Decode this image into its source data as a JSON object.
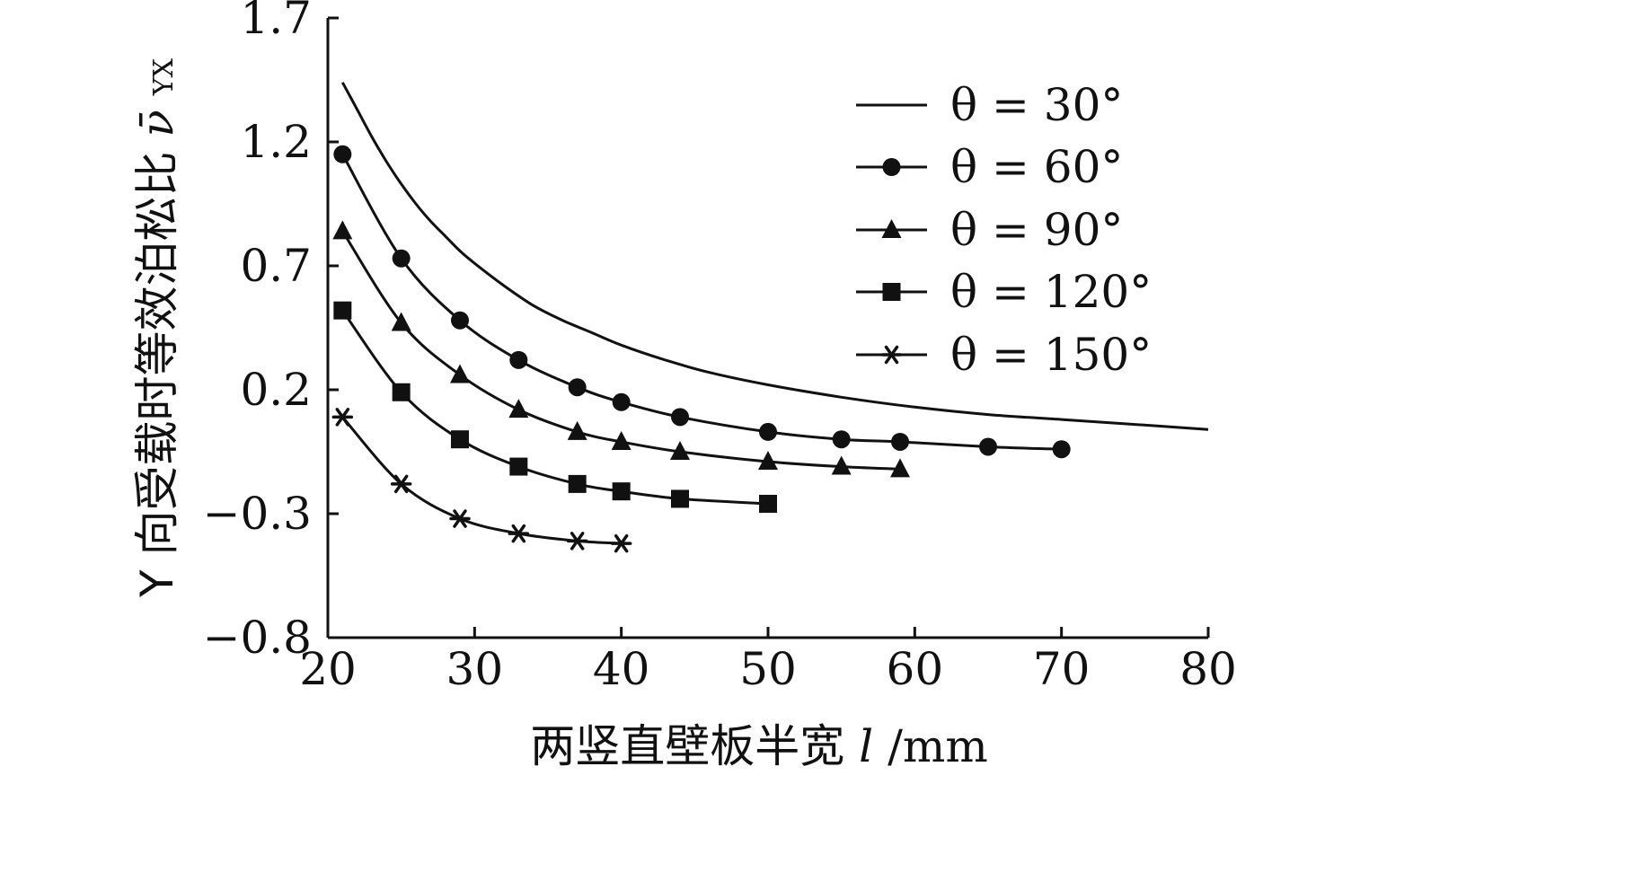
{
  "chart_data": {
    "type": "line",
    "title": "",
    "xlabel_main": "两竖直壁板半宽",
    "xlabel_var": "l",
    "xlabel_unit": "/mm",
    "ylabel_main": "Y 向受载时等效泊松比",
    "ylabel_var": "ν̄",
    "ylabel_sub": "YX",
    "xlim": [
      20,
      80
    ],
    "ylim": [
      -0.8,
      1.7
    ],
    "x_ticks": [
      20,
      30,
      40,
      50,
      60,
      70,
      80
    ],
    "x_tick_labels": [
      "20",
      "30",
      "40",
      "50",
      "60",
      "70",
      "80"
    ],
    "y_ticks": [
      1.7,
      1.2,
      0.7,
      0.2,
      -0.3,
      -0.8
    ],
    "y_tick_labels": [
      "1.7",
      "1.2",
      "0.7",
      "0.2",
      "−0.3",
      "−0.8"
    ],
    "legend_position": "top-right",
    "series": [
      {
        "name": "θ = 30°",
        "marker": "none",
        "x": [
          21,
          22,
          23,
          24,
          25,
          26,
          27,
          28,
          29,
          30,
          32,
          34,
          36,
          38,
          40,
          43,
          46,
          50,
          55,
          60,
          65,
          70,
          75,
          80
        ],
        "y": [
          1.44,
          1.33,
          1.22,
          1.12,
          1.03,
          0.95,
          0.88,
          0.82,
          0.76,
          0.71,
          0.62,
          0.54,
          0.48,
          0.43,
          0.38,
          0.32,
          0.27,
          0.22,
          0.17,
          0.13,
          0.1,
          0.08,
          0.06,
          0.04
        ]
      },
      {
        "name": "θ = 60°",
        "marker": "circle",
        "x": [
          21,
          25,
          29,
          33,
          37,
          40,
          44,
          50,
          55,
          59,
          65,
          70
        ],
        "y": [
          1.15,
          0.73,
          0.48,
          0.32,
          0.21,
          0.15,
          0.09,
          0.03,
          0.0,
          -0.01,
          -0.03,
          -0.04
        ]
      },
      {
        "name": "θ = 90°",
        "marker": "triangle",
        "x": [
          21,
          25,
          29,
          33,
          37,
          40,
          44,
          50,
          55,
          59
        ],
        "y": [
          0.84,
          0.47,
          0.26,
          0.12,
          0.03,
          -0.01,
          -0.05,
          -0.09,
          -0.11,
          -0.12
        ]
      },
      {
        "name": "θ = 120°",
        "marker": "square",
        "x": [
          21,
          25,
          29,
          33,
          37,
          40,
          44,
          50
        ],
        "y": [
          0.52,
          0.19,
          0.0,
          -0.11,
          -0.18,
          -0.21,
          -0.24,
          -0.26
        ]
      },
      {
        "name": "θ = 150°",
        "marker": "asterisk",
        "x": [
          21,
          25,
          29,
          33,
          37,
          40
        ],
        "y": [
          0.09,
          -0.18,
          -0.32,
          -0.38,
          -0.41,
          -0.42
        ]
      }
    ]
  }
}
